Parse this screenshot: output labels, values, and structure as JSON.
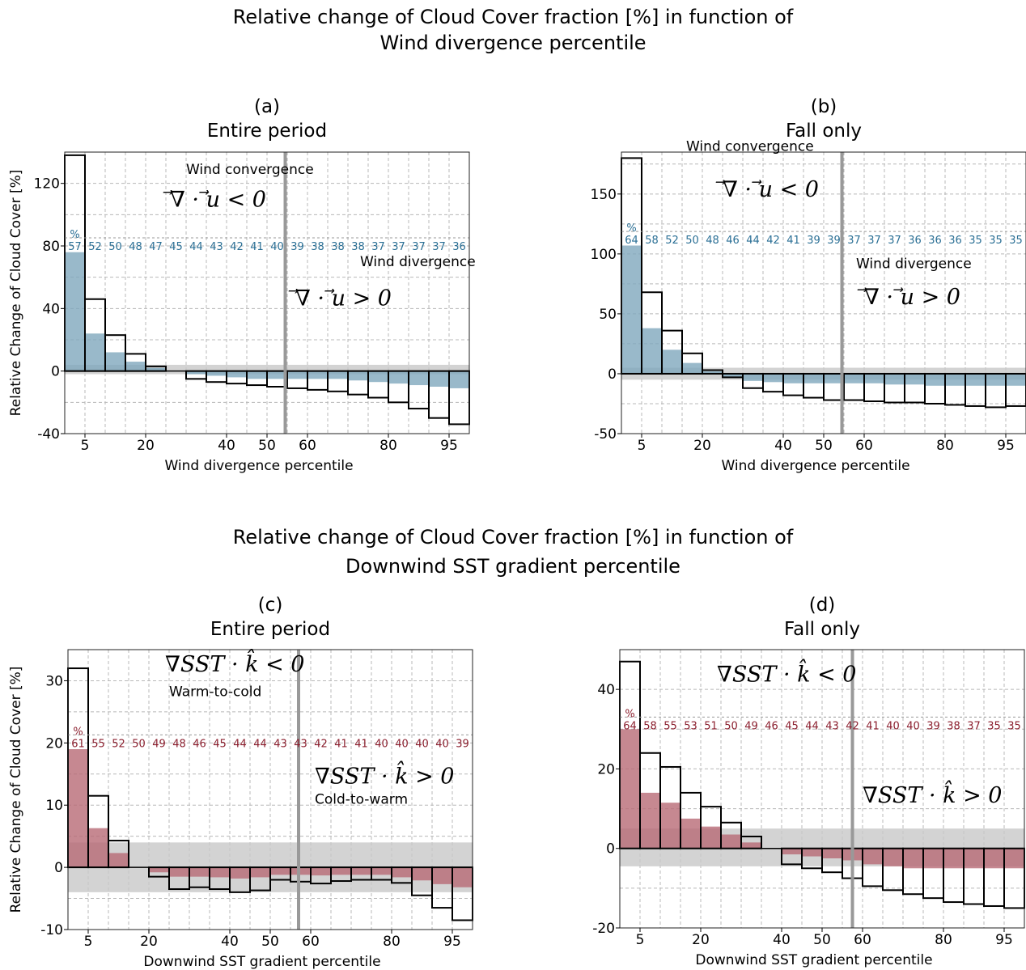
{
  "titles": {
    "top": [
      "Relative change of Cloud Cover fraction [%] in function of",
      "Wind divergence percentile"
    ],
    "bottom": [
      "Relative change of Cloud Cover fraction [%] in function of",
      "Downwind SST gradient percentile"
    ]
  },
  "colors": {
    "blue_fill": "#7fa7bd",
    "red_fill": "#b86a75",
    "blue_text": "#2a6f95",
    "red_text": "#8b1f2e",
    "band": "#c8c8c8",
    "divider": "#999999"
  },
  "chart_data": [
    {
      "id": "a",
      "type": "bar",
      "panel_label": "(a)",
      "panel_title": "Entire period",
      "xlabel": "Wind divergence percentile",
      "ylabel": "Relative Change of Cloud Cover [%]",
      "xlim": [
        0,
        100
      ],
      "ylim": [
        -40,
        140
      ],
      "grid": true,
      "x_ticks": [
        5,
        20,
        40,
        50,
        60,
        80,
        95
      ],
      "y_ticks": [
        -40,
        0,
        40,
        80,
        120
      ],
      "bins": [
        0,
        5,
        10,
        15,
        20,
        25,
        30,
        35,
        40,
        45,
        50,
        55,
        60,
        65,
        70,
        75,
        80,
        85,
        90,
        95
      ],
      "bin_width": 5,
      "outline_values": [
        138,
        46,
        23,
        11,
        3,
        0,
        -5,
        -7,
        -8,
        -9,
        -10,
        -11,
        -12,
        -13,
        -15,
        -17,
        -20,
        -24,
        -30,
        -34,
        -35
      ],
      "filled_values": [
        76,
        24,
        12,
        6,
        2,
        0,
        -2,
        -3,
        -4,
        -5,
        -5,
        -5,
        -5,
        -5,
        -6,
        -7,
        -8,
        -9,
        -10,
        -11,
        -13
      ],
      "percent_marker": "%",
      "percent_labels": [
        "57",
        "52",
        "50",
        "48",
        "47",
        "45",
        "44",
        "43",
        "42",
        "41",
        "40",
        "39",
        "38",
        "38",
        "38",
        "37",
        "37",
        "37",
        "37",
        "36"
      ],
      "percent_label_y": 80,
      "band": [
        -2,
        4
      ],
      "divider_x": 54.5,
      "fill_color": "#7fa7bd",
      "label_color": "#2a6f95",
      "annotations": [
        {
          "text": "Wind convergence",
          "x": 30,
          "y": 126,
          "kind": "text"
        },
        {
          "text": "⃗∇ · ⃗u < 0",
          "x": 26,
          "y": 105,
          "kind": "math"
        },
        {
          "text": "Wind divergence",
          "x": 73,
          "y": 67,
          "kind": "text"
        },
        {
          "text": "⃗∇ · ⃗u > 0",
          "x": 57,
          "y": 42,
          "kind": "math"
        }
      ]
    },
    {
      "id": "b",
      "type": "bar",
      "panel_label": "(b)",
      "panel_title": "Fall only",
      "xlabel": "Wind divergence percentile",
      "ylabel": "",
      "xlim": [
        0,
        100
      ],
      "ylim": [
        -50,
        185
      ],
      "grid": true,
      "x_ticks": [
        5,
        20,
        40,
        50,
        60,
        80,
        95
      ],
      "y_ticks": [
        -50,
        0,
        50,
        100,
        150
      ],
      "bins": [
        0,
        5,
        10,
        15,
        20,
        25,
        30,
        35,
        40,
        45,
        50,
        55,
        60,
        65,
        70,
        75,
        80,
        85,
        90,
        95
      ],
      "bin_width": 5,
      "outline_values": [
        180,
        68,
        36,
        17,
        3,
        -3,
        -12,
        -15,
        -18,
        -20,
        -22,
        -22,
        -23,
        -24,
        -24,
        -25,
        -26,
        -27,
        -28,
        -27,
        -10
      ],
      "filled_values": [
        107,
        38,
        20,
        9,
        2,
        -3,
        -6,
        -7,
        -8,
        -8,
        -8,
        -8,
        -8,
        -9,
        -9,
        -10,
        -10,
        -10,
        -10,
        -10,
        -10
      ],
      "percent_marker": "%",
      "percent_labels": [
        "64",
        "58",
        "52",
        "50",
        "48",
        "46",
        "44",
        "42",
        "41",
        "39",
        "39",
        "37",
        "37",
        "37",
        "36",
        "36",
        "36",
        "35",
        "35",
        "35"
      ],
      "percent_label_y": 112,
      "band": [
        -5,
        5
      ],
      "divider_x": 54.5,
      "fill_color": "#7fa7bd",
      "label_color": "#2a6f95",
      "annotations": [
        {
          "text": "Wind convergence",
          "x": 16,
          "y": 186,
          "kind": "text"
        },
        {
          "text": "⃗∇ · ⃗u < 0",
          "x": 25,
          "y": 148,
          "kind": "math"
        },
        {
          "text": "Wind divergence",
          "x": 58,
          "y": 88,
          "kind": "text"
        },
        {
          "text": "⃗∇ · ⃗u > 0",
          "x": 60,
          "y": 58,
          "kind": "math"
        }
      ]
    },
    {
      "id": "c",
      "type": "bar",
      "panel_label": "(c)",
      "panel_title": "Entire period",
      "xlabel": "Downwind SST gradient percentile",
      "ylabel": "Relative Change of Cloud Cover [%]",
      "xlim": [
        0,
        100
      ],
      "ylim": [
        -10,
        35
      ],
      "grid": true,
      "x_ticks": [
        5,
        20,
        40,
        50,
        60,
        80,
        95
      ],
      "y_ticks": [
        -10,
        0,
        10,
        20,
        30
      ],
      "bins": [
        0,
        5,
        10,
        15,
        20,
        25,
        30,
        35,
        40,
        45,
        50,
        55,
        60,
        65,
        70,
        75,
        80,
        85,
        90,
        95
      ],
      "bin_width": 5,
      "outline_values": [
        32,
        11.5,
        4.3,
        0,
        -1.5,
        -3.5,
        -3.2,
        -3.5,
        -4,
        -3.7,
        -2,
        -2.3,
        -2.6,
        -2.2,
        -2,
        -2,
        -2.5,
        -4.5,
        -6.5,
        -8.5,
        0.3
      ],
      "filled_values": [
        19,
        6.3,
        2.3,
        0,
        -0.8,
        -1.5,
        -1.5,
        -1.6,
        -1.8,
        -1.6,
        -1.2,
        -1.2,
        -1.3,
        -1.2,
        -1.2,
        -1.2,
        -1.6,
        -2.1,
        -2.7,
        -3.2,
        0.2
      ],
      "percent_marker": "%",
      "percent_labels": [
        "61",
        "55",
        "52",
        "50",
        "49",
        "48",
        "46",
        "45",
        "44",
        "44",
        "43",
        "43",
        "42",
        "41",
        "41",
        "40",
        "40",
        "40",
        "40",
        "39"
      ],
      "percent_label_y": 20,
      "band": [
        -4,
        4
      ],
      "divider_x": 57,
      "fill_color": "#b86a75",
      "label_color": "#8b1f2e",
      "annotations": [
        {
          "text": "∇SST · k̂ < 0",
          "x": 24,
          "y": 31.5,
          "kind": "math"
        },
        {
          "text": "Warm-to-cold",
          "x": 25,
          "y": 27.5,
          "kind": "text"
        },
        {
          "text": "∇SST · k̂ > 0",
          "x": 61,
          "y": 13.5,
          "kind": "math"
        },
        {
          "text": "Cold-to-warm",
          "x": 61,
          "y": 10.2,
          "kind": "text"
        }
      ]
    },
    {
      "id": "d",
      "type": "bar",
      "panel_label": "(d)",
      "panel_title": "Fall only",
      "xlabel": "Downwind SST gradient percentile",
      "ylabel": "",
      "xlim": [
        0,
        100
      ],
      "ylim": [
        -20,
        50
      ],
      "grid": true,
      "x_ticks": [
        5,
        20,
        40,
        50,
        60,
        80,
        95
      ],
      "y_ticks": [
        -20,
        0,
        20,
        40
      ],
      "bins": [
        0,
        5,
        10,
        15,
        20,
        25,
        30,
        35,
        40,
        45,
        50,
        55,
        60,
        65,
        70,
        75,
        80,
        85,
        90,
        95
      ],
      "bin_width": 5,
      "outline_values": [
        47,
        24,
        20.5,
        14,
        10.5,
        6.5,
        3,
        0,
        -4,
        -5,
        -6,
        -7.5,
        -9.5,
        -10.5,
        -11.5,
        -12.5,
        -13.5,
        -14,
        -14.5,
        -15,
        -13
      ],
      "filled_values": [
        30,
        14,
        11.5,
        7.5,
        5.5,
        3.5,
        1.5,
        0,
        -1.5,
        -2,
        -2.5,
        -3,
        -4,
        -4.5,
        -5,
        -5,
        -5,
        -5,
        -5,
        -5,
        -4.5
      ],
      "percent_marker": "%",
      "percent_labels": [
        "64",
        "58",
        "55",
        "53",
        "51",
        "50",
        "49",
        "46",
        "45",
        "44",
        "43",
        "42",
        "41",
        "40",
        "40",
        "39",
        "38",
        "37",
        "35",
        "35"
      ],
      "percent_label_y": 31,
      "band": [
        -4.5,
        5
      ],
      "divider_x": 57.5,
      "fill_color": "#b86a75",
      "label_color": "#8b1f2e",
      "annotations": [
        {
          "text": "∇SST · k̂ < 0",
          "x": 24,
          "y": 42,
          "kind": "math"
        },
        {
          "text": "∇SST · k̂ > 0",
          "x": 60,
          "y": 11.5,
          "kind": "math"
        }
      ]
    }
  ]
}
